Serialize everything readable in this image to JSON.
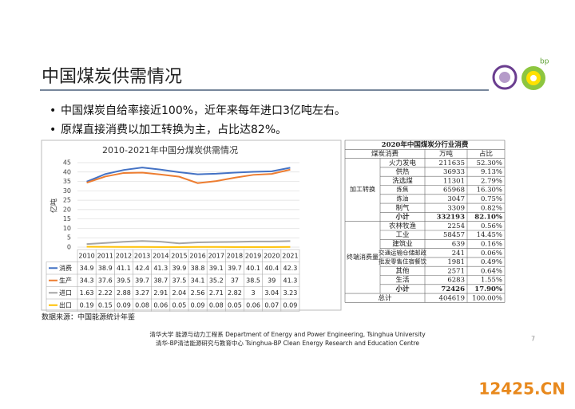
{
  "header": {
    "title": "中国煤炭供需情况"
  },
  "bullets": [
    "中国煤炭自给率接近100%，近年来每年进口3亿吨左右。",
    "原煤直接消费以加工转换为主，占比达82%。"
  ],
  "chart_data": {
    "type": "line",
    "title": "2010-2021年中国分煤炭供需情况",
    "y_label": "亿吨",
    "categories": [
      "2010",
      "2011",
      "2012",
      "2013",
      "2014",
      "2015",
      "2016",
      "2017",
      "2018",
      "2019",
      "2020",
      "2021"
    ],
    "series": [
      {
        "name": "消费",
        "color": "#4472c4",
        "values": [
          34.9,
          38.9,
          41.1,
          42.4,
          41.3,
          39.9,
          38.8,
          39.1,
          39.7,
          40.1,
          40.4,
          42.3
        ]
      },
      {
        "name": "生产",
        "color": "#ed7d31",
        "values": [
          34.3,
          37.6,
          39.5,
          39.7,
          38.7,
          37.5,
          34.1,
          35.2,
          37,
          38.5,
          39,
          41.3
        ]
      },
      {
        "name": "进口",
        "color": "#a5a5a5",
        "values": [
          1.63,
          2.22,
          2.88,
          3.27,
          2.91,
          2.04,
          2.56,
          2.71,
          2.82,
          3,
          3.04,
          3.23
        ]
      },
      {
        "name": "出口",
        "color": "#ffc000",
        "values": [
          0.19,
          0.15,
          0.09,
          0.08,
          0.06,
          0.05,
          0.09,
          0.08,
          0.05,
          0.06,
          0.07,
          0.09
        ]
      }
    ],
    "ylim": [
      0,
      45
    ],
    "yticks": [
      0,
      5,
      10,
      15,
      20,
      25,
      30,
      35,
      40,
      45
    ],
    "grid": true
  },
  "table": {
    "title": "2020年中国煤炭分行业消费",
    "header": [
      "煤炭消费",
      "万吨",
      "占比"
    ],
    "groups": [
      {
        "label": "加工转换",
        "rows": [
          [
            "火力发电",
            "211635",
            "52.30%"
          ],
          [
            "供热",
            "36933",
            "9.13%"
          ],
          [
            "洗选煤",
            "11301",
            "2.79%"
          ],
          [
            "炼焦",
            "65968",
            "16.30%"
          ],
          [
            "炼油",
            "3047",
            "0.75%"
          ],
          [
            "制气",
            "3309",
            "0.82%"
          ],
          [
            "小计",
            "332193",
            "82.10%"
          ]
        ]
      },
      {
        "label": "终端消费量",
        "rows": [
          [
            "农林牧渔",
            "2254",
            "0.56%"
          ],
          [
            "工业",
            "58457",
            "14.45%"
          ],
          [
            "建筑业",
            "639",
            "0.16%"
          ],
          [
            "交通运输仓储邮政",
            "241",
            "0.06%"
          ],
          [
            "批发零售住宿餐饮",
            "1981",
            "0.49%"
          ],
          [
            "其他",
            "2571",
            "0.64%"
          ],
          [
            "生活",
            "6283",
            "1.55%"
          ],
          [
            "小计",
            "72426",
            "17.90%"
          ]
        ]
      }
    ],
    "total": [
      "总计",
      "404619",
      "100.00%"
    ]
  },
  "source": "数据来源：中国能源统计年鉴",
  "footer": [
    "清华大学 能源与动力工程系 Department of Energy and Power Engineering, Tsinghua University",
    "清华-BP清洁能源研究与教育中心 Tsinghua-BP Clean Energy Research and Education Centre"
  ],
  "page_number": "7",
  "watermark": "12425.CN",
  "logo_text": "bp"
}
